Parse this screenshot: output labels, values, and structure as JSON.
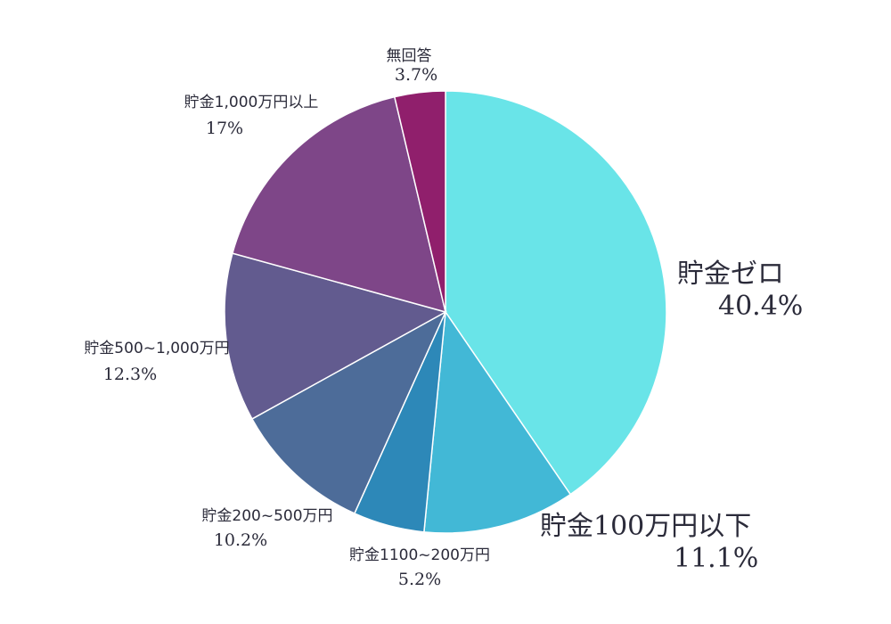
{
  "chart_data": {
    "type": "pie",
    "start_angle_deg": 0,
    "direction": "clockwise",
    "slices": [
      {
        "label": "貯金ゼロ",
        "value": 40.4,
        "value_label": "40.4%",
        "color": "#69e4e8"
      },
      {
        "label": "貯金100万円以下",
        "value": 11.1,
        "value_label": "11.1%",
        "color": "#42b8d6"
      },
      {
        "label": "貯金1100~200万円",
        "value": 5.2,
        "value_label": "5.2%",
        "color": "#2d88b8"
      },
      {
        "label": "貯金200~500万円",
        "value": 10.2,
        "value_label": "10.2%",
        "color": "#4d6c99"
      },
      {
        "label": "貯金500~1,000万円",
        "value": 12.3,
        "value_label": "12.3%",
        "color": "#625b8f"
      },
      {
        "label": "貯金1,000万円以上",
        "value": 17,
        "value_label": "17%",
        "color": "#7e4688"
      },
      {
        "label": "無回答",
        "value": 3.7,
        "value_label": "3.7%",
        "color": "#901f6c"
      }
    ]
  }
}
